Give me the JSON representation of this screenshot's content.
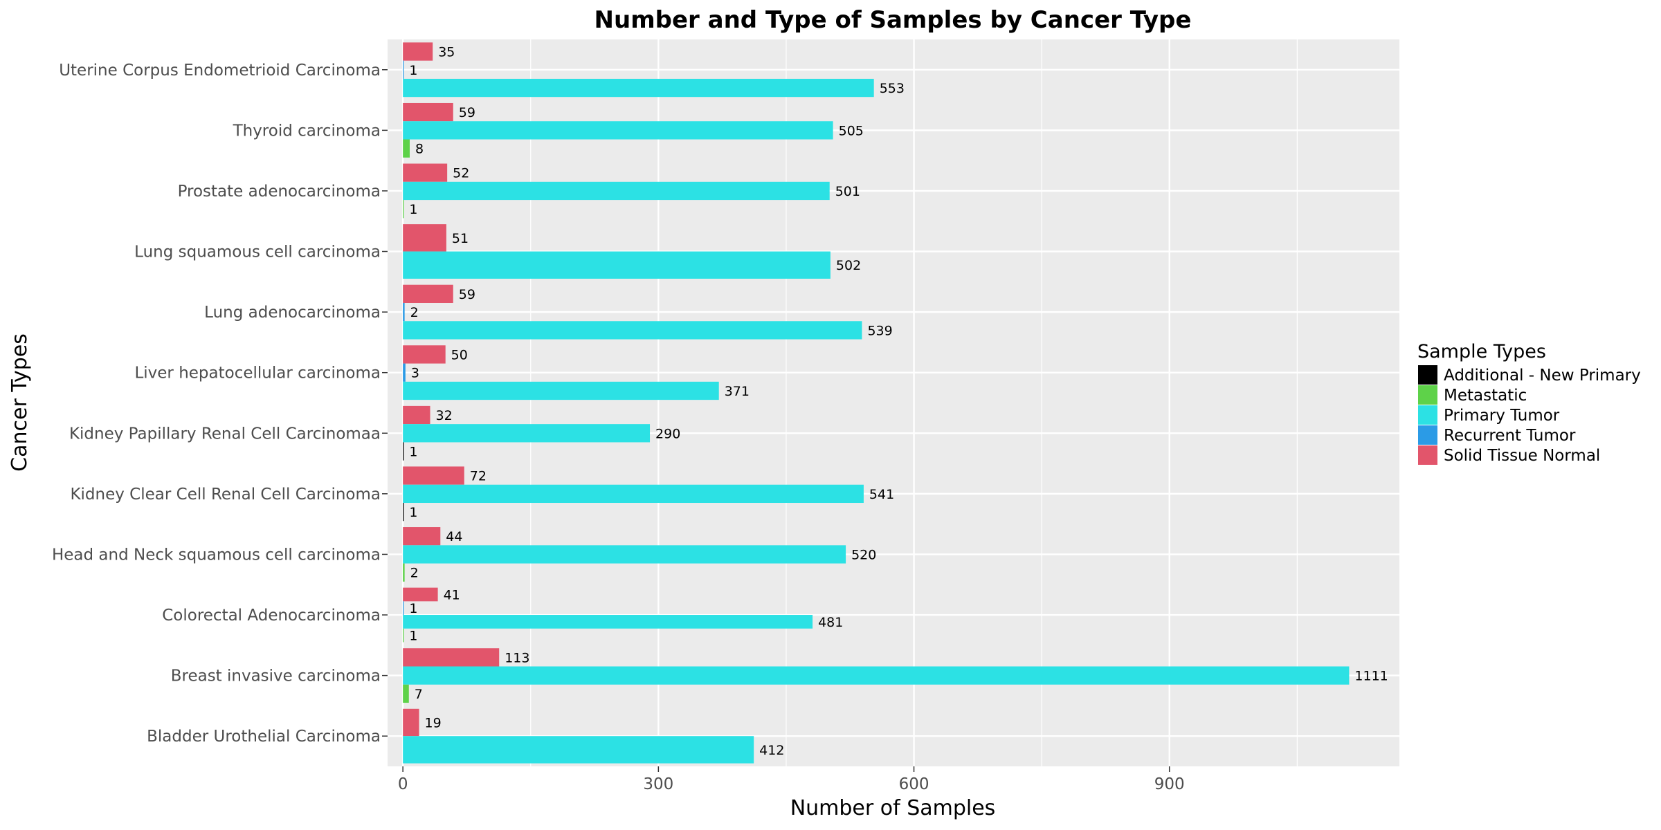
{
  "chart_data": {
    "type": "bar",
    "orientation": "horizontal",
    "grouping": "dodge",
    "title": "Number and Type of Samples by Cancer Type",
    "xlabel": "Number of Samples",
    "ylabel": "Cancer Types",
    "xlim": [
      -18,
      1170
    ],
    "xticks": [
      0,
      300,
      600,
      900
    ],
    "grid": true,
    "legend_position": "right",
    "legend_title": "Sample Types",
    "sample_types": [
      {
        "name": "Additional - New Primary",
        "color": "#000000"
      },
      {
        "name": "Metastatic",
        "color": "#5ed249"
      },
      {
        "name": "Primary Tumor",
        "color": "#2ce1e4"
      },
      {
        "name": "Recurrent Tumor",
        "color": "#2b9be6"
      },
      {
        "name": "Solid Tissue Normal",
        "color": "#e2556b"
      }
    ],
    "categories": [
      {
        "name": "Uterine Corpus Endometrioid Carcinoma",
        "bars": [
          [
            "Solid Tissue Normal",
            35
          ],
          [
            "Recurrent Tumor",
            1
          ],
          [
            "Primary Tumor",
            553
          ]
        ]
      },
      {
        "name": "Thyroid carcinoma",
        "bars": [
          [
            "Solid Tissue Normal",
            59
          ],
          [
            "Primary Tumor",
            505
          ],
          [
            "Metastatic",
            8
          ]
        ]
      },
      {
        "name": "Prostate adenocarcinoma",
        "bars": [
          [
            "Solid Tissue Normal",
            52
          ],
          [
            "Primary Tumor",
            501
          ],
          [
            "Metastatic",
            1
          ]
        ]
      },
      {
        "name": "Lung squamous cell carcinoma",
        "bars": [
          [
            "Solid Tissue Normal",
            51
          ],
          [
            "Primary Tumor",
            502
          ]
        ]
      },
      {
        "name": "Lung adenocarcinoma",
        "bars": [
          [
            "Solid Tissue Normal",
            59
          ],
          [
            "Recurrent Tumor",
            2
          ],
          [
            "Primary Tumor",
            539
          ]
        ]
      },
      {
        "name": "Liver hepatocellular carcinoma",
        "bars": [
          [
            "Solid Tissue Normal",
            50
          ],
          [
            "Recurrent Tumor",
            3
          ],
          [
            "Primary Tumor",
            371
          ]
        ]
      },
      {
        "name": "Kidney Papillary Renal Cell Carcinomaa",
        "bars": [
          [
            "Solid Tissue Normal",
            32
          ],
          [
            "Primary Tumor",
            290
          ],
          [
            "Additional - New Primary",
            1
          ]
        ]
      },
      {
        "name": "Kidney Clear Cell Renal Cell Carcinoma",
        "bars": [
          [
            "Solid Tissue Normal",
            72
          ],
          [
            "Primary Tumor",
            541
          ],
          [
            "Additional - New Primary",
            1
          ]
        ]
      },
      {
        "name": "Head and Neck squamous cell carcinoma",
        "bars": [
          [
            "Solid Tissue Normal",
            44
          ],
          [
            "Primary Tumor",
            520
          ],
          [
            "Metastatic",
            2
          ]
        ]
      },
      {
        "name": "Colorectal Adenocarcinoma",
        "bars": [
          [
            "Solid Tissue Normal",
            41
          ],
          [
            "Recurrent Tumor",
            1
          ],
          [
            "Primary Tumor",
            481
          ],
          [
            "Metastatic",
            1
          ]
        ]
      },
      {
        "name": "Breast invasive carcinoma",
        "bars": [
          [
            "Solid Tissue Normal",
            113
          ],
          [
            "Primary Tumor",
            1111
          ],
          [
            "Metastatic",
            7
          ]
        ]
      },
      {
        "name": "Bladder Urothelial Carcinoma",
        "bars": [
          [
            "Solid Tissue Normal",
            19
          ],
          [
            "Primary Tumor",
            412
          ]
        ]
      }
    ]
  }
}
